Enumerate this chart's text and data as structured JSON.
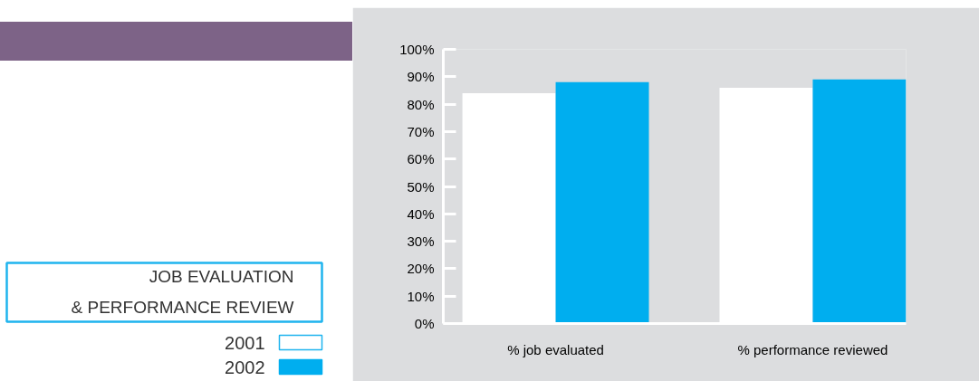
{
  "chart_data": {
    "type": "bar",
    "title": "JOB EVALUATION\n& PERFORMANCE REVIEW",
    "categories": [
      "% job evaluated",
      "% performance reviewed"
    ],
    "series": [
      {
        "name": "2001",
        "color": "#ffffff",
        "values": [
          84,
          86
        ]
      },
      {
        "name": "2002",
        "color": "#00aeef",
        "values": [
          88,
          89
        ]
      }
    ],
    "ylim": [
      0,
      100
    ],
    "yticks": [
      {
        "value": 0,
        "label": "0%"
      },
      {
        "value": 10,
        "label": "10%"
      },
      {
        "value": 20,
        "label": "20%"
      },
      {
        "value": 30,
        "label": "30%"
      },
      {
        "value": 40,
        "label": "40%"
      },
      {
        "value": 50,
        "label": "50%"
      },
      {
        "value": 60,
        "label": "60%"
      },
      {
        "value": 70,
        "label": "70%"
      },
      {
        "value": 80,
        "label": "80%"
      },
      {
        "value": 90,
        "label": "90%"
      },
      {
        "value": 100,
        "label": "100%"
      }
    ],
    "legend": "bottom left"
  }
}
